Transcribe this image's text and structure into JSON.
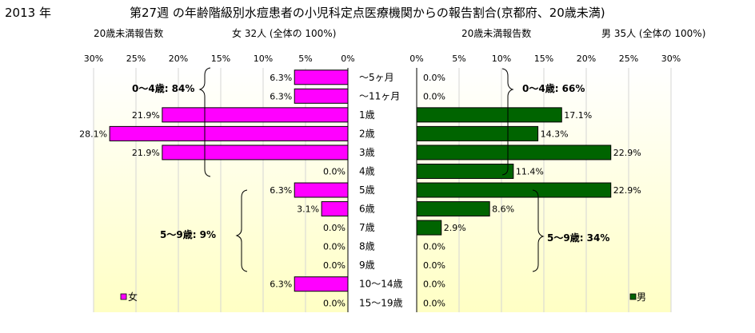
{
  "header": {
    "year": "2013 年",
    "title": "第27週 の年齢階級別水痘患者の小児科定点医療機関からの報告割合(京都府、20歳未満)"
  },
  "female_panel": {
    "subtitle_left": "20歳未満報告数",
    "subtitle_right": "女  32人 (全体の  100%)",
    "group1": "0〜4歳: 84%",
    "group2": "5〜9歳:  9%",
    "legend": "女"
  },
  "male_panel": {
    "subtitle_left": "20歳未満報告数",
    "subtitle_right": "男  35人 (全体の  100%)",
    "group1": "0〜4歳: 66%",
    "group2": "5〜9歳: 34%",
    "legend": "男"
  },
  "colors": {
    "female": "#ff00ff",
    "male": "#006400",
    "background_top": "#ffffff",
    "background_bottom": "#ffffc4"
  },
  "chart_data": [
    {
      "type": "bar",
      "orientation": "horizontal",
      "direction": "right-to-left",
      "categories": [
        "〜5ヶ月",
        "〜11ヶ月",
        "1歳",
        "2歳",
        "3歳",
        "4歳",
        "5歳",
        "6歳",
        "7歳",
        "8歳",
        "9歳",
        "10〜14歳",
        "15〜19歳"
      ],
      "series": [
        {
          "name": "女",
          "values": [
            6.3,
            6.3,
            21.9,
            28.1,
            21.9,
            0.0,
            6.3,
            3.1,
            0.0,
            0.0,
            0.0,
            6.3,
            0.0
          ],
          "labels": [
            "6.3%",
            "6.3%",
            "21.9%",
            "28.1%",
            "21.9%",
            "0.0%",
            "6.3%",
            "3.1%",
            "0.0%",
            "0.0%",
            "0.0%",
            "6.3%",
            "0.0%"
          ]
        }
      ],
      "xlim": [
        0,
        30
      ],
      "ticks": [
        "30%",
        "25%",
        "20%",
        "15%",
        "10%",
        "5%",
        "0%"
      ],
      "legend": "bottom-left"
    },
    {
      "type": "bar",
      "orientation": "horizontal",
      "direction": "left-to-right",
      "categories": [
        "〜5ヶ月",
        "〜11ヶ月",
        "1歳",
        "2歳",
        "3歳",
        "4歳",
        "5歳",
        "6歳",
        "7歳",
        "8歳",
        "9歳",
        "10〜14歳",
        "15〜19歳"
      ],
      "series": [
        {
          "name": "男",
          "values": [
            0.0,
            0.0,
            17.1,
            14.3,
            22.9,
            11.4,
            22.9,
            8.6,
            2.9,
            0.0,
            0.0,
            0.0,
            0.0
          ],
          "labels": [
            "0.0%",
            "0.0%",
            "17.1%",
            "14.3%",
            "22.9%",
            "11.4%",
            "22.9%",
            "8.6%",
            "2.9%",
            "0.0%",
            "0.0%",
            "0.0%",
            "0.0%"
          ]
        }
      ],
      "xlim": [
        0,
        30
      ],
      "ticks": [
        "0%",
        "5%",
        "10%",
        "15%",
        "20%",
        "25%",
        "30%"
      ],
      "legend": "bottom-right"
    }
  ]
}
